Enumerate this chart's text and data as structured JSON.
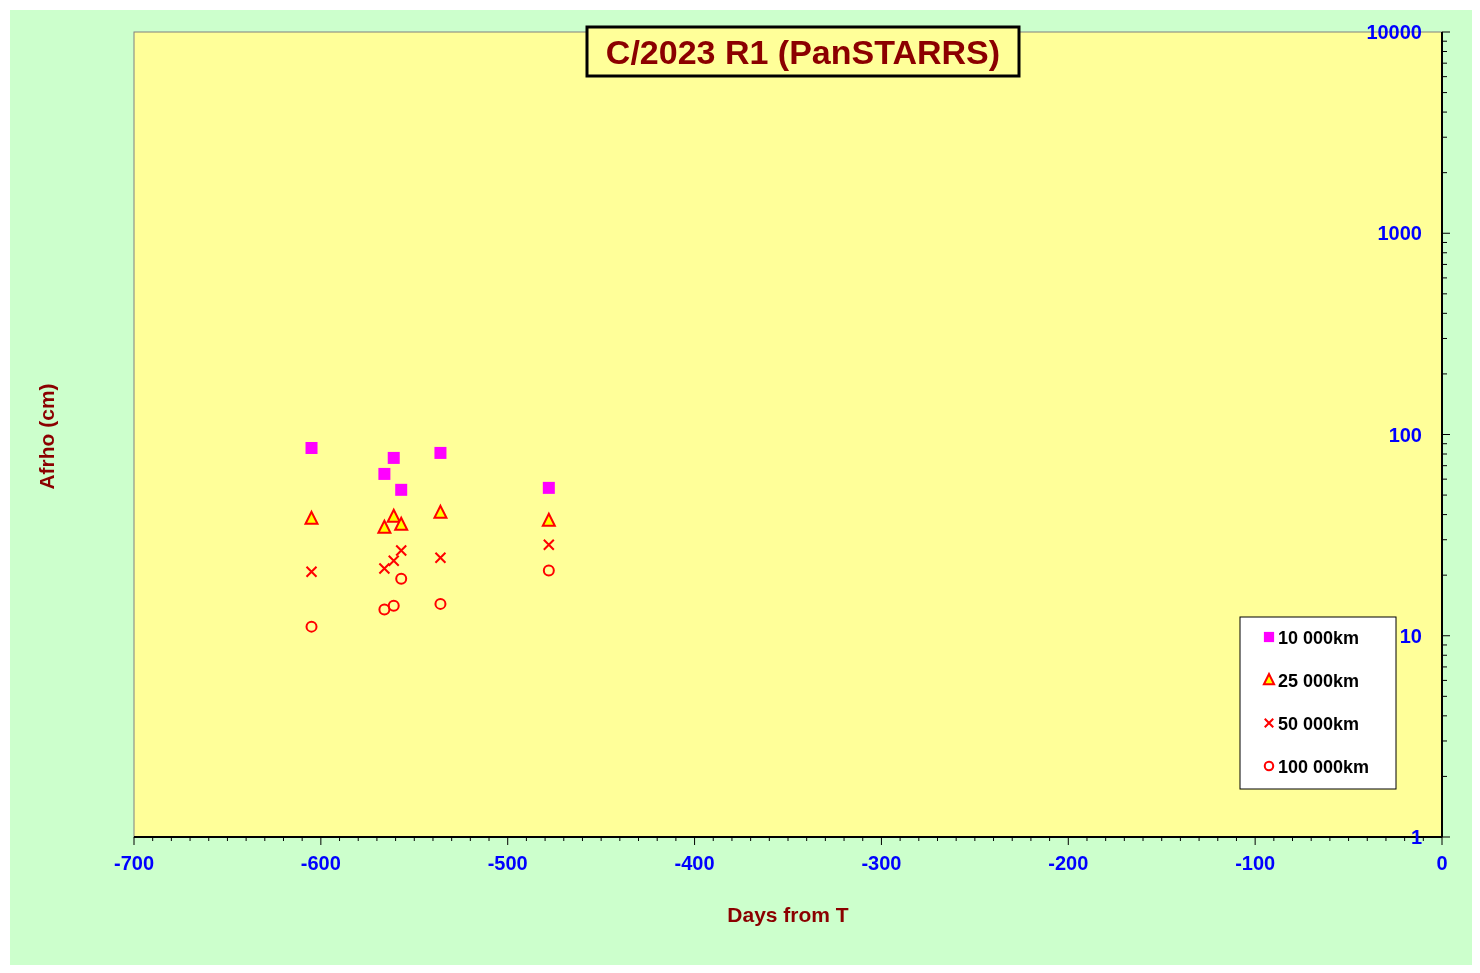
{
  "chart_data": {
    "type": "scatter",
    "title": "C/2023 R1 (PanSTARRS)",
    "xlabel": "Days from T",
    "ylabel": "Afrho (cm)",
    "x": [
      -605,
      -566,
      -561,
      -557,
      -536,
      -478
    ],
    "series": [
      {
        "name": "10 000km",
        "color": "#ff00ff",
        "marker": "square",
        "values": [
          85.7,
          63.7,
          76.5,
          53.1,
          81,
          54.3
        ]
      },
      {
        "name": "25 000km",
        "color": "#ff0000",
        "marker": "triangle",
        "values": [
          38.1,
          34.4,
          39,
          35.6,
          40.8,
          37.3
        ]
      },
      {
        "name": "50 000km",
        "color": "#ff0000",
        "marker": "cross",
        "values": [
          20.8,
          21.6,
          23.6,
          26.5,
          24.4,
          28.3
        ]
      },
      {
        "name": "100 000km",
        "color": "#ff0000",
        "marker": "circle",
        "values": [
          11.1,
          13.5,
          14.1,
          19.2,
          14.4,
          21.1
        ]
      }
    ],
    "log": "y",
    "xlim": [
      -700,
      0
    ],
    "ylim": [
      1,
      10000
    ],
    "xticks": [
      -700,
      {
        "value": -690,
        "label": null
      },
      {
        "value": -680,
        "label": null
      },
      {
        "value": -670,
        "label": null
      },
      {
        "value": -660,
        "label": null
      },
      {
        "value": -650,
        "label": null
      },
      {
        "value": -640,
        "label": null
      },
      {
        "value": -630,
        "label": null
      },
      {
        "value": -620,
        "label": null
      },
      {
        "value": -610,
        "label": null
      },
      -600,
      {
        "value": -590,
        "label": null
      },
      {
        "value": -580,
        "label": null
      },
      {
        "value": -570,
        "label": null
      },
      {
        "value": -560,
        "label": null
      },
      {
        "value": -550,
        "label": null
      },
      {
        "value": -540,
        "label": null
      },
      {
        "value": -530,
        "label": null
      },
      {
        "value": -520,
        "label": null
      },
      {
        "value": -510,
        "label": null
      },
      -500,
      {
        "value": -490,
        "label": null
      },
      {
        "value": -480,
        "label": null
      },
      {
        "value": -470,
        "label": null
      },
      {
        "value": -460,
        "label": null
      },
      {
        "value": -450,
        "label": null
      },
      {
        "value": -440,
        "label": null
      },
      {
        "value": -430,
        "label": null
      },
      {
        "value": -420,
        "label": null
      },
      {
        "value": -410,
        "label": null
      },
      -400,
      {
        "value": -390,
        "label": null
      },
      {
        "value": -380,
        "label": null
      },
      {
        "value": -370,
        "label": null
      },
      {
        "value": -360,
        "label": null
      },
      {
        "value": -350,
        "label": null
      },
      {
        "value": -340,
        "label": null
      },
      {
        "value": -330,
        "label": null
      },
      {
        "value": -320,
        "label": null
      },
      {
        "value": -310,
        "label": null
      },
      -300,
      {
        "value": -290,
        "label": null
      },
      {
        "value": -280,
        "label": null
      },
      {
        "value": -270,
        "label": null
      },
      {
        "value": -260,
        "label": null
      },
      {
        "value": -250,
        "label": null
      },
      {
        "value": -240,
        "label": null
      },
      {
        "value": -230,
        "label": null
      },
      {
        "value": -220,
        "label": null
      },
      {
        "value": -210,
        "label": null
      },
      -200,
      {
        "value": -190,
        "label": null
      },
      {
        "value": -180,
        "label": null
      },
      {
        "value": -170,
        "label": null
      },
      {
        "value": -160,
        "label": null
      },
      {
        "value": -150,
        "label": null
      },
      {
        "value": -140,
        "label": null
      },
      {
        "value": -130,
        "label": null
      },
      {
        "value": -120,
        "label": null
      },
      {
        "value": -110,
        "label": null
      },
      -100,
      {
        "value": -90,
        "label": null
      },
      {
        "value": -80,
        "label": null
      },
      {
        "value": -70,
        "label": null
      },
      {
        "value": -60,
        "label": null
      },
      {
        "value": -50,
        "label": null
      },
      {
        "value": -40,
        "label": null
      },
      {
        "value": -30,
        "label": null
      },
      {
        "value": -20,
        "label": null
      },
      {
        "value": -10,
        "label": null
      },
      0
    ],
    "yticks": [
      1,
      {
        "value": 2,
        "label": null
      },
      {
        "value": 3,
        "label": null
      },
      {
        "value": 4,
        "label": null
      },
      {
        "value": 5,
        "label": null
      },
      {
        "value": 6,
        "label": null
      },
      {
        "value": 7,
        "label": null
      },
      {
        "value": 8,
        "label": null
      },
      {
        "value": 9,
        "label": null
      },
      10,
      {
        "value": 20,
        "label": null
      },
      {
        "value": 30,
        "label": null
      },
      {
        "value": 40,
        "label": null
      },
      {
        "value": 50,
        "label": null
      },
      {
        "value": 60,
        "label": null
      },
      {
        "value": 70,
        "label": null
      },
      {
        "value": 80,
        "label": null
      },
      {
        "value": 90,
        "label": null
      },
      100,
      {
        "value": 200,
        "label": null
      },
      {
        "value": 300,
        "label": null
      },
      {
        "value": 400,
        "label": null
      },
      {
        "value": 500,
        "label": null
      },
      {
        "value": 600,
        "label": null
      },
      {
        "value": 700,
        "label": null
      },
      {
        "value": 800,
        "label": null
      },
      {
        "value": 900,
        "label": null
      },
      1000,
      {
        "value": 2000,
        "label": null
      },
      {
        "value": 3000,
        "label": null
      },
      {
        "value": 4000,
        "label": null
      },
      {
        "value": 5000,
        "label": null
      },
      {
        "value": 6000,
        "label": null
      },
      {
        "value": 7000,
        "label": null
      },
      {
        "value": 8000,
        "label": null
      },
      {
        "value": 9000,
        "label": null
      },
      10000
    ],
    "grid": false,
    "legend": "bottom right"
  }
}
